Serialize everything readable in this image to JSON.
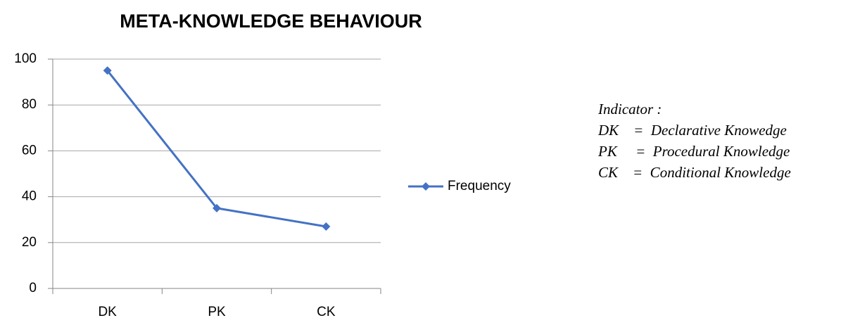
{
  "chart_data": {
    "type": "line",
    "title": "META-KNOWLEDGE BEHAVIOUR",
    "categories": [
      "DK",
      "PK",
      "CK"
    ],
    "series": [
      {
        "name": "Frequency",
        "color": "#4472c4",
        "values": [
          95,
          35,
          27
        ]
      }
    ],
    "ylim": [
      0,
      100
    ],
    "yticks": [
      0,
      20,
      40,
      60,
      80,
      100
    ],
    "grid": true,
    "legend": "right",
    "annotations": [
      "Indicator :",
      "DK    =  Declarative Knowedge",
      "PK     =  Procedural Knowledge",
      "CK    =  Conditional Knowledge"
    ]
  }
}
